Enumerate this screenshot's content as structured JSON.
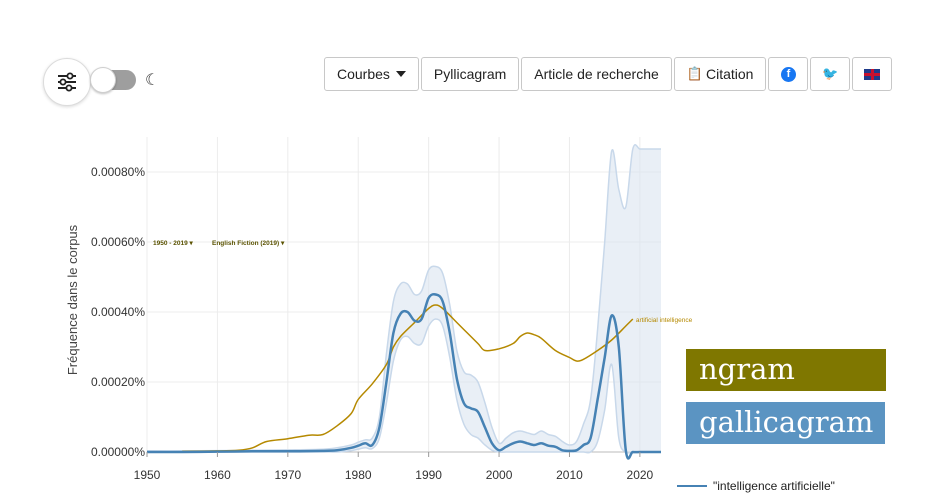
{
  "toolbar": {
    "courbes_label": "Courbes",
    "pyllicagram_label": "Pyllicagram",
    "article_label": "Article de recherche",
    "citation_label": "Citation",
    "facebook_icon": "facebook-icon",
    "twitter_icon": "twitter-icon",
    "flag_icon": "uk-flag-icon"
  },
  "settings": {
    "icon": "sliders-icon",
    "moon_icon": "moon-icon"
  },
  "badges": {
    "ngram": "ngram",
    "gallicagram": "gallicagram",
    "ngram_color": "#7f7700",
    "gallicagram_color": "#5b94c2"
  },
  "chart_data": {
    "type": "line",
    "ylabel": "Fréquence dans le corpus",
    "xlabel": "",
    "x_ticks": [
      1950,
      1960,
      1970,
      1980,
      1990,
      2000,
      2010,
      2020
    ],
    "y_ticks": [
      "0.00000%",
      "0.00020%",
      "0.00040%",
      "0.00060%",
      "0.00080%"
    ],
    "xlim": [
      1950,
      2023
    ],
    "ylim": [
      0,
      0.0009
    ],
    "grid": true,
    "legend": {
      "position": "bottom-right",
      "entries": [
        "\"intelligence artificielle\""
      ]
    },
    "ngram_annotations": [
      "1950 - 2019",
      "English Fiction (2019)",
      "artificial intelligence"
    ],
    "series": [
      {
        "name": "\"intelligence artificielle\"",
        "color": "#4682b4",
        "x": [
          1950,
          1955,
          1960,
          1965,
          1970,
          1975,
          1977,
          1979,
          1980,
          1981,
          1982,
          1983,
          1984,
          1985,
          1986,
          1987,
          1988,
          1989,
          1990,
          1991,
          1992,
          1993,
          1994,
          1995,
          1996,
          1997,
          1998,
          1999,
          2000,
          2001,
          2002,
          2003,
          2004,
          2005,
          2006,
          2007,
          2008,
          2009,
          2010,
          2011,
          2012,
          2013,
          2014,
          2015,
          2016,
          2017,
          2018,
          2019,
          2020,
          2021,
          2022,
          2023
        ],
        "y": [
          0,
          0,
          1e-06,
          2e-06,
          2e-06,
          3e-06,
          5e-06,
          1.2e-05,
          1.8e-05,
          2.5e-05,
          2e-05,
          7e-05,
          0.0002,
          0.00034,
          0.000395,
          0.0004,
          0.000375,
          0.00038,
          0.00044,
          0.00045,
          0.00043,
          0.00034,
          0.00021,
          0.00014,
          0.000125,
          0.000115,
          7e-05,
          2.5e-05,
          5e-06,
          1.5e-05,
          2.5e-05,
          3e-05,
          2.5e-05,
          2e-05,
          2.5e-05,
          1.8e-05,
          1.5e-05,
          5e-06,
          3e-06,
          5e-06,
          2e-05,
          4e-05,
          0.00015,
          0.00027,
          0.00039,
          0.0003,
          5e-06,
          0,
          0,
          0,
          0,
          0
        ],
        "band_upper": [
          3e-06,
          3e-06,
          4e-06,
          5e-06,
          6e-06,
          8e-06,
          1.2e-05,
          2e-05,
          2.8e-05,
          3.5e-05,
          4e-05,
          0.0001,
          0.00028,
          0.00043,
          0.00048,
          0.00048,
          0.00045,
          0.00046,
          0.00052,
          0.00053,
          0.00051,
          0.00042,
          0.00029,
          0.00023,
          0.00022,
          0.0002,
          0.00014,
          7e-05,
          2.5e-05,
          4e-05,
          5.5e-05,
          6e-05,
          5.5e-05,
          5e-05,
          6e-05,
          5e-05,
          4.5e-05,
          3e-05,
          2e-05,
          3e-05,
          8e-05,
          0.00015,
          0.00035,
          0.0006,
          0.00086,
          0.00075,
          0.0007,
          0.00087,
          0.00087,
          0.00087,
          0.00087,
          0.00087
        ],
        "band_lower": [
          0,
          0,
          0,
          0,
          0,
          0,
          0,
          4e-06,
          8e-06,
          1.2e-05,
          1e-05,
          4e-05,
          0.00014,
          0.00026,
          0.00032,
          0.00033,
          0.00031,
          0.00031,
          0.00036,
          0.00038,
          0.00036,
          0.00027,
          0.00015,
          8e-05,
          5e-05,
          4e-05,
          2e-05,
          5e-06,
          0,
          0,
          0,
          0,
          0,
          0,
          0,
          0,
          0,
          0,
          0,
          0,
          0,
          0,
          3e-05,
          0.00012,
          0.00025,
          4e-05,
          0,
          0,
          0,
          0,
          0,
          0
        ]
      },
      {
        "name": "artificial intelligence",
        "color": "#b58900",
        "x": [
          1955,
          1960,
          1963,
          1965,
          1967,
          1970,
          1973,
          1975,
          1977,
          1979,
          1980,
          1982,
          1984,
          1985,
          1986,
          1988,
          1990,
          1991,
          1992,
          1994,
          1995,
          1997,
          1998,
          2000,
          2002,
          2003,
          2004,
          2005,
          2006,
          2008,
          2010,
          2011,
          2012,
          2014,
          2016,
          2018,
          2019
        ],
        "y": [
          2e-06,
          3e-06,
          5e-06,
          1.2e-05,
          3e-05,
          3.8e-05,
          4.8e-05,
          5e-05,
          7.5e-05,
          0.00011,
          0.00015,
          0.000195,
          0.00025,
          0.0003,
          0.00033,
          0.00037,
          0.00041,
          0.00042,
          0.00041,
          0.00037,
          0.00035,
          0.00031,
          0.00029,
          0.000295,
          0.00031,
          0.00033,
          0.00034,
          0.000335,
          0.000325,
          0.00029,
          0.00027,
          0.00026,
          0.000265,
          0.00029,
          0.00032,
          0.00036,
          0.00038
        ]
      }
    ]
  }
}
